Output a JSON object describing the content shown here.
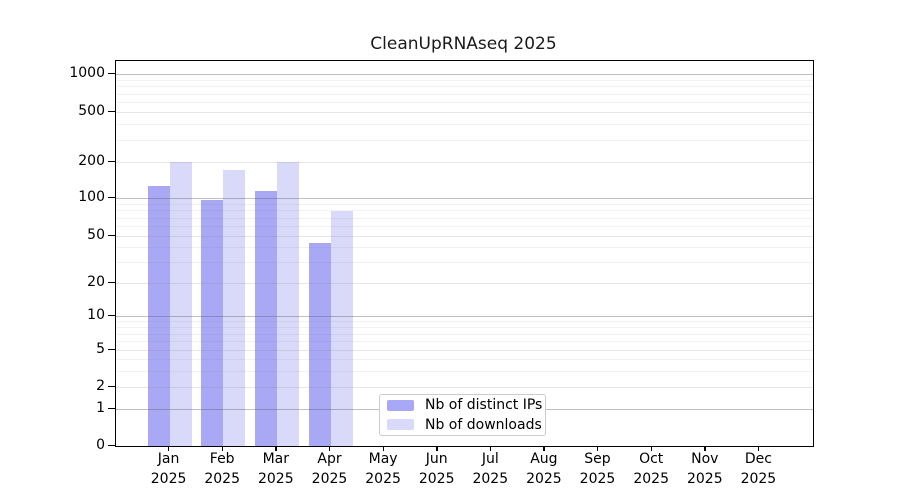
{
  "chart_data": {
    "type": "bar",
    "title": "CleanUpRNAseq 2025",
    "categories": [
      "Jan",
      "Feb",
      "Mar",
      "Apr",
      "May",
      "Jun",
      "Jul",
      "Aug",
      "Sep",
      "Oct",
      "Nov",
      "Dec"
    ],
    "year": "2025",
    "series": [
      {
        "name": "Nb of distinct IPs",
        "color": "#a8a8f5",
        "values": [
          127,
          97,
          114,
          44,
          null,
          null,
          null,
          null,
          null,
          null,
          null,
          null
        ]
      },
      {
        "name": "Nb of downloads",
        "color": "#d9d9f9",
        "values": [
          200,
          172,
          200,
          79,
          null,
          null,
          null,
          null,
          null,
          null,
          null,
          null
        ]
      }
    ],
    "y_scale": "symlog",
    "y_ticks": [
      0,
      1,
      2,
      5,
      10,
      20,
      50,
      100,
      200,
      500,
      1000
    ],
    "y_minor_gridlines": [
      3,
      4,
      6,
      7,
      8,
      9,
      30,
      40,
      60,
      70,
      80,
      90,
      300,
      400,
      600,
      700,
      800,
      900
    ],
    "ylim": [
      0,
      1200
    ],
    "grid": true,
    "legend_position": "inside-bottom-center",
    "tick_fractions": {
      "0": 0,
      "1": 0.0961,
      "2": 0.1532,
      "5": 0.2494,
      "10": 0.3377,
      "20": 0.4234,
      "50": 0.5455,
      "100": 0.6442,
      "200": 0.7377,
      "500": 0.8675,
      "1000": 0.9662
    },
    "axis_color": "#000000",
    "text_color": "#1a1a1a"
  }
}
